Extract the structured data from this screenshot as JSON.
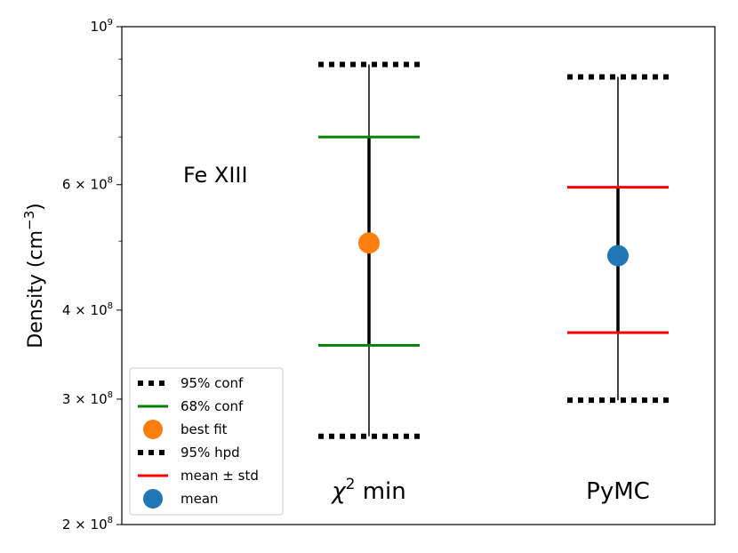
{
  "chart_data": {
    "type": "errorbar",
    "ylabel": {
      "base": "Density (cm",
      "sup": "−3",
      "close": ")"
    },
    "yscale": "log",
    "ylim": [
      200000000.0,
      1000000000.0
    ],
    "yticks": [
      {
        "value": 200000000.0,
        "mantissa": "2",
        "times": " × 10",
        "exp": "8"
      },
      {
        "value": 300000000.0,
        "mantissa": "3",
        "times": " × 10",
        "exp": "8"
      },
      {
        "value": 400000000.0,
        "mantissa": "4",
        "times": " × 10",
        "exp": "8"
      },
      {
        "value": 600000000.0,
        "mantissa": "6",
        "times": " × 10",
        "exp": "8"
      },
      {
        "value": 1000000000.0,
        "mantissa": "10",
        "times": "",
        "exp": "9"
      }
    ],
    "annotation": "Fe XIII",
    "groups": [
      {
        "label_chi": "χ",
        "label_sup": "2",
        "label_rest": " min",
        "center": 497000000.0,
        "center_kind": "best fit",
        "center_color": "#ff7f0e",
        "inner": [
          357000000.0,
          700000000.0
        ],
        "inner_kind": "68% conf",
        "inner_color": "#008000",
        "outer": [
          266000000.0,
          885000000.0
        ],
        "outer_kind": "95% conf"
      },
      {
        "label": "PyMC",
        "center": 477000000.0,
        "center_kind": "mean",
        "center_color": "#1f77b4",
        "inner": [
          372000000.0,
          595000000.0
        ],
        "inner_kind": "mean ± std",
        "inner_color": "#ff0000",
        "outer": [
          299000000.0,
          850000000.0
        ],
        "outer_kind": "95% hpd"
      }
    ],
    "legend": {
      "placement": "lower-left",
      "entries": [
        {
          "label": "95% conf",
          "marker": "dotted",
          "color": "#000000"
        },
        {
          "label": "68% conf",
          "marker": "line",
          "color": "#008000"
        },
        {
          "label": "best fit",
          "marker": "circle",
          "color": "#ff7f0e"
        },
        {
          "label": "95% hpd",
          "marker": "dotted",
          "color": "#000000"
        },
        {
          "label": "mean ± std",
          "marker": "line",
          "color": "#ff0000"
        },
        {
          "label": "mean",
          "marker": "circle",
          "color": "#1f77b4"
        }
      ]
    }
  }
}
